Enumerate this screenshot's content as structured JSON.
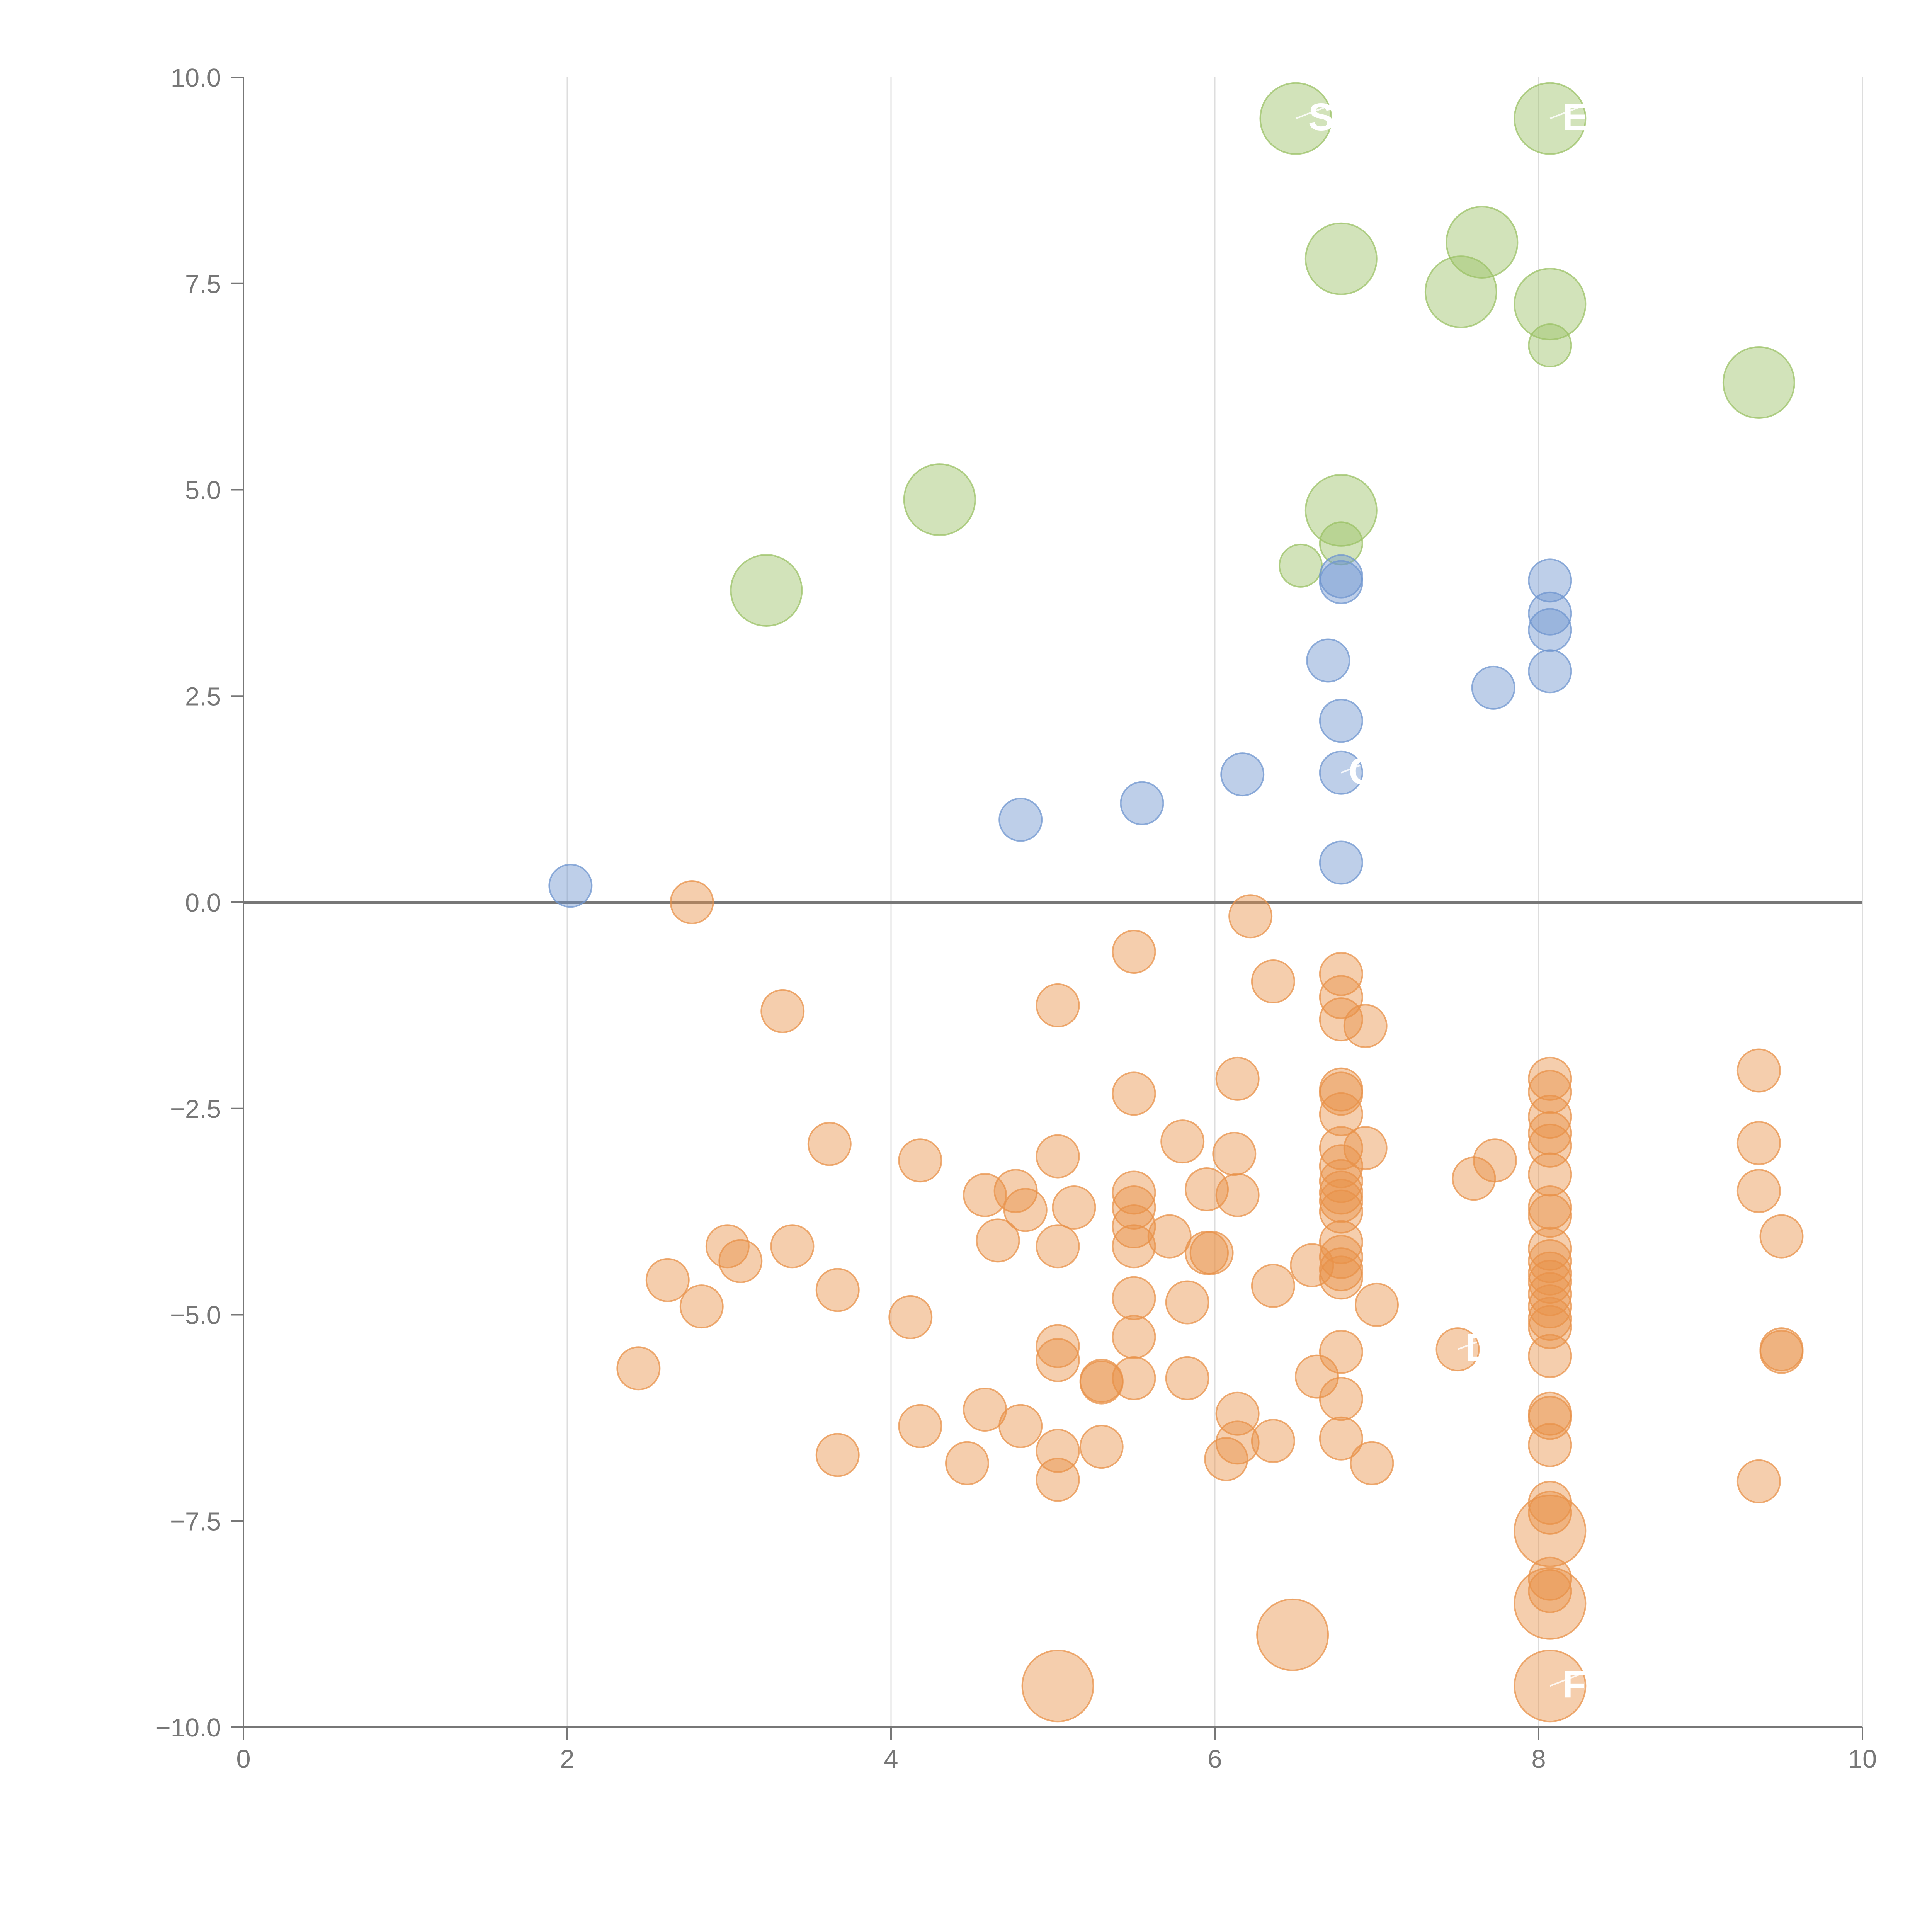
{
  "chart_data": {
    "type": "scatter",
    "title": "",
    "xlabel": "",
    "ylabel": "",
    "xlim": [
      0,
      10
    ],
    "ylim": [
      -10,
      10
    ],
    "x_ticks": [
      "0",
      "2",
      "4",
      "6",
      "8",
      "10"
    ],
    "y_ticks": [
      "10.0",
      "7.5",
      "5.0",
      "2.5",
      "0.0",
      "−2.5",
      "−5.0",
      "−7.5",
      "−10.0"
    ],
    "grid": "vertical",
    "reference_line_y": 0,
    "colors": {
      "green": "#9bc265",
      "blue": "#6f95cf",
      "orange": "#e8924a"
    },
    "series": [
      {
        "color": "green",
        "points": [
          {
            "x": 6.5,
            "y": 9.5,
            "size": "large",
            "label": "S"
          },
          {
            "x": 8.07,
            "y": 9.5,
            "size": "large",
            "label": "EC"
          },
          {
            "x": 7.65,
            "y": 8.0,
            "size": "large"
          },
          {
            "x": 6.78,
            "y": 7.8,
            "size": "large"
          },
          {
            "x": 7.52,
            "y": 7.4,
            "size": "large"
          },
          {
            "x": 8.07,
            "y": 7.25,
            "size": "large"
          },
          {
            "x": 8.07,
            "y": 6.75,
            "size": "small"
          },
          {
            "x": 9.36,
            "y": 6.3,
            "size": "large"
          },
          {
            "x": 4.3,
            "y": 4.88,
            "size": "large"
          },
          {
            "x": 6.78,
            "y": 4.75,
            "size": "large"
          },
          {
            "x": 6.78,
            "y": 4.35,
            "size": "small"
          },
          {
            "x": 6.53,
            "y": 4.08,
            "size": "small"
          },
          {
            "x": 3.23,
            "y": 3.78,
            "size": "large"
          }
        ]
      },
      {
        "color": "blue",
        "points": [
          {
            "x": 6.78,
            "y": 3.95
          },
          {
            "x": 6.78,
            "y": 3.88
          },
          {
            "x": 8.07,
            "y": 3.9
          },
          {
            "x": 8.07,
            "y": 3.5
          },
          {
            "x": 8.07,
            "y": 3.3
          },
          {
            "x": 6.7,
            "y": 2.93
          },
          {
            "x": 8.07,
            "y": 2.8
          },
          {
            "x": 7.72,
            "y": 2.6
          },
          {
            "x": 6.78,
            "y": 2.2
          },
          {
            "x": 6.17,
            "y": 1.55
          },
          {
            "x": 6.78,
            "y": 1.57,
            "label": "G"
          },
          {
            "x": 5.55,
            "y": 1.2
          },
          {
            "x": 4.8,
            "y": 1.0
          },
          {
            "x": 6.78,
            "y": 0.48
          },
          {
            "x": 2.02,
            "y": 0.2
          }
        ]
      },
      {
        "color": "orange",
        "points": [
          {
            "x": 2.77,
            "y": 0.0
          },
          {
            "x": 6.22,
            "y": -0.17
          },
          {
            "x": 5.5,
            "y": -0.6
          },
          {
            "x": 6.78,
            "y": -0.87
          },
          {
            "x": 6.36,
            "y": -0.96
          },
          {
            "x": 6.78,
            "y": -1.15
          },
          {
            "x": 5.03,
            "y": -1.25
          },
          {
            "x": 3.33,
            "y": -1.32
          },
          {
            "x": 6.78,
            "y": -1.42
          },
          {
            "x": 6.93,
            "y": -1.5
          },
          {
            "x": 9.36,
            "y": -2.04
          },
          {
            "x": 6.14,
            "y": -2.14
          },
          {
            "x": 8.07,
            "y": -2.14
          },
          {
            "x": 6.78,
            "y": -2.27
          },
          {
            "x": 8.07,
            "y": -2.3
          },
          {
            "x": 6.78,
            "y": -2.32
          },
          {
            "x": 5.5,
            "y": -2.32
          },
          {
            "x": 6.78,
            "y": -2.57
          },
          {
            "x": 8.07,
            "y": -2.6
          },
          {
            "x": 8.07,
            "y": -2.8
          },
          {
            "x": 5.8,
            "y": -2.9
          },
          {
            "x": 9.36,
            "y": -2.92
          },
          {
            "x": 3.62,
            "y": -2.93
          },
          {
            "x": 8.07,
            "y": -2.95
          },
          {
            "x": 6.78,
            "y": -2.98
          },
          {
            "x": 6.93,
            "y": -2.98
          },
          {
            "x": 6.12,
            "y": -3.05
          },
          {
            "x": 5.03,
            "y": -3.08
          },
          {
            "x": 4.18,
            "y": -3.13
          },
          {
            "x": 7.73,
            "y": -3.13
          },
          {
            "x": 6.78,
            "y": -3.2
          },
          {
            "x": 8.07,
            "y": -3.3
          },
          {
            "x": 7.6,
            "y": -3.35
          },
          {
            "x": 6.78,
            "y": -3.38
          },
          {
            "x": 5.95,
            "y": -3.48
          },
          {
            "x": 9.36,
            "y": -3.5
          },
          {
            "x": 6.78,
            "y": -3.52
          },
          {
            "x": 5.5,
            "y": -3.52
          },
          {
            "x": 4.58,
            "y": -3.55
          },
          {
            "x": 6.14,
            "y": -3.55
          },
          {
            "x": 4.77,
            "y": -3.5
          },
          {
            "x": 6.78,
            "y": -3.62
          },
          {
            "x": 5.5,
            "y": -3.7
          },
          {
            "x": 8.07,
            "y": -3.7
          },
          {
            "x": 5.13,
            "y": -3.7
          },
          {
            "x": 4.83,
            "y": -3.73
          },
          {
            "x": 6.78,
            "y": -3.75
          },
          {
            "x": 8.07,
            "y": -3.8
          },
          {
            "x": 5.5,
            "y": -3.93
          },
          {
            "x": 5.72,
            "y": -4.05
          },
          {
            "x": 9.5,
            "y": -4.05
          },
          {
            "x": 4.66,
            "y": -4.1
          },
          {
            "x": 6.78,
            "y": -4.12
          },
          {
            "x": 5.03,
            "y": -4.17
          },
          {
            "x": 2.99,
            "y": -4.17
          },
          {
            "x": 3.39,
            "y": -4.17
          },
          {
            "x": 5.5,
            "y": -4.17
          },
          {
            "x": 8.07,
            "y": -4.2
          },
          {
            "x": 5.95,
            "y": -4.25
          },
          {
            "x": 5.98,
            "y": -4.25
          },
          {
            "x": 6.78,
            "y": -4.3
          },
          {
            "x": 3.07,
            "y": -4.35
          },
          {
            "x": 8.07,
            "y": -4.35
          },
          {
            "x": 6.6,
            "y": -4.4
          },
          {
            "x": 6.78,
            "y": -4.45
          },
          {
            "x": 8.07,
            "y": -4.5
          },
          {
            "x": 6.78,
            "y": -4.55
          },
          {
            "x": 2.62,
            "y": -4.58
          },
          {
            "x": 8.07,
            "y": -4.6
          },
          {
            "x": 6.36,
            "y": -4.65
          },
          {
            "x": 3.67,
            "y": -4.7
          },
          {
            "x": 8.07,
            "y": -4.75
          },
          {
            "x": 5.5,
            "y": -4.8
          },
          {
            "x": 5.83,
            "y": -4.85
          },
          {
            "x": 7.0,
            "y": -4.88
          },
          {
            "x": 8.07,
            "y": -4.9
          },
          {
            "x": 2.83,
            "y": -4.9
          },
          {
            "x": 4.12,
            "y": -5.03
          },
          {
            "x": 8.07,
            "y": -5.05
          },
          {
            "x": 8.07,
            "y": -5.15
          },
          {
            "x": 5.5,
            "y": -5.27
          },
          {
            "x": 5.03,
            "y": -5.38
          },
          {
            "x": 7.5,
            "y": -5.42,
            "label": "DN"
          },
          {
            "x": 9.5,
            "y": -5.42
          },
          {
            "x": 9.5,
            "y": -5.45
          },
          {
            "x": 6.78,
            "y": -5.45
          },
          {
            "x": 8.07,
            "y": -5.5
          },
          {
            "x": 5.03,
            "y": -5.55
          },
          {
            "x": 2.44,
            "y": -5.65
          },
          {
            "x": 6.63,
            "y": -5.75
          },
          {
            "x": 5.5,
            "y": -5.77
          },
          {
            "x": 5.83,
            "y": -5.77
          },
          {
            "x": 5.3,
            "y": -5.8
          },
          {
            "x": 5.3,
            "y": -5.82
          },
          {
            "x": 6.78,
            "y": -6.02
          },
          {
            "x": 4.58,
            "y": -6.15
          },
          {
            "x": 6.14,
            "y": -6.2
          },
          {
            "x": 8.07,
            "y": -6.2
          },
          {
            "x": 8.07,
            "y": -6.25
          },
          {
            "x": 4.18,
            "y": -6.35
          },
          {
            "x": 4.8,
            "y": -6.35
          },
          {
            "x": 6.78,
            "y": -6.5
          },
          {
            "x": 6.14,
            "y": -6.55
          },
          {
            "x": 6.36,
            "y": -6.53
          },
          {
            "x": 8.07,
            "y": -6.58
          },
          {
            "x": 5.3,
            "y": -6.6
          },
          {
            "x": 5.03,
            "y": -6.65
          },
          {
            "x": 3.67,
            "y": -6.7
          },
          {
            "x": 6.07,
            "y": -6.75
          },
          {
            "x": 4.47,
            "y": -6.8
          },
          {
            "x": 6.97,
            "y": -6.8
          },
          {
            "x": 5.03,
            "y": -7.0
          },
          {
            "x": 9.36,
            "y": -7.02
          },
          {
            "x": 8.07,
            "y": -7.28
          },
          {
            "x": 8.07,
            "y": -7.4
          },
          {
            "x": 8.07,
            "y": -7.62,
            "size": "large"
          },
          {
            "x": 8.07,
            "y": -8.2
          },
          {
            "x": 8.07,
            "y": -8.35
          },
          {
            "x": 8.07,
            "y": -8.5,
            "size": "large"
          },
          {
            "x": 6.48,
            "y": -8.88,
            "size": "large"
          },
          {
            "x": 5.03,
            "y": -9.5,
            "size": "large"
          },
          {
            "x": 8.07,
            "y": -9.5,
            "size": "large",
            "label": "F"
          }
        ]
      }
    ]
  }
}
